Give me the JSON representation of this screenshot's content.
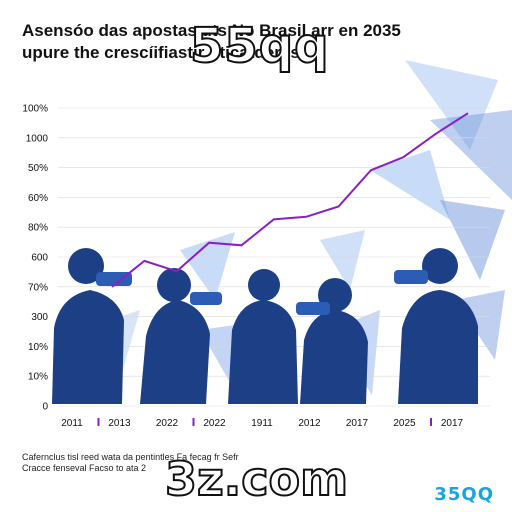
{
  "title": {
    "line1": "Asensóo das apostas",
    "line1_rest": "uts No Brasil arr en 2035",
    "line2": "upure the crescíifiastir",
    "line2_rest": "oticatderes"
  },
  "watermarks": {
    "top": "55qq",
    "bottom": "3z.com"
  },
  "brand": "35QQ",
  "footer": {
    "line1": "Cafernclus tisl reed wata da pentintles Fa fecag fr Sefr",
    "line2": "Cracce fenseval Facso to ata 2"
  },
  "colors": {
    "line": "#8a1fc4",
    "silhouette": "#1d3f86",
    "shard_light": "#bcd3f5",
    "shard_mid": "#6f95de",
    "brand": "#1aa3dd"
  },
  "chart_data": {
    "type": "line",
    "y_tick_labels": [
      "100%",
      "1000",
      "50%",
      "60%",
      "80%",
      "600",
      "70%",
      "300",
      "10%",
      "10%",
      "0"
    ],
    "x_tick_labels": [
      "2011",
      "2013",
      "2022",
      "2022",
      "1911",
      "2012",
      "2017",
      "2025",
      "2017"
    ],
    "x_tick_marker": [
      false,
      true,
      false,
      true,
      false,
      false,
      false,
      false,
      true
    ],
    "series": [
      {
        "values": [
          4.6,
          5.6,
          5.2,
          6.3,
          6.2,
          7.2,
          7.3,
          7.7,
          9.1,
          9.6,
          10.5,
          11.3
        ]
      }
    ],
    "ylim": [
      0,
      11.5
    ],
    "grid": true
  }
}
